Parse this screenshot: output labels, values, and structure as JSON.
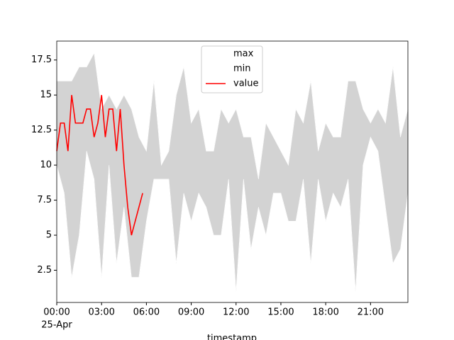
{
  "chart_data": {
    "type": "range-line",
    "x_label": "timestamp",
    "date_label": "25-Apr",
    "fill_color": "#d3d3d3",
    "xlim": [
      "00:00",
      "23:30"
    ],
    "xticks": [
      "00:00",
      "03:00",
      "06:00",
      "09:00",
      "12:00",
      "15:00",
      "18:00",
      "21:00"
    ],
    "ylim": [
      0.2,
      18.85
    ],
    "yticks": [
      2.5,
      5.0,
      7.5,
      10.0,
      12.5,
      15.0,
      17.5
    ],
    "legend": "upper center",
    "series": [
      {
        "name": "max",
        "color": "#ffffff",
        "x": [
          "00:00",
          "00:30",
          "01:00",
          "01:30",
          "02:00",
          "02:30",
          "03:00",
          "03:30",
          "04:00",
          "04:30",
          "05:00",
          "05:30",
          "06:00",
          "06:30",
          "07:00",
          "07:30",
          "08:00",
          "08:30",
          "09:00",
          "09:30",
          "10:00",
          "10:30",
          "11:00",
          "11:30",
          "12:00",
          "12:30",
          "13:00",
          "13:30",
          "14:00",
          "14:30",
          "15:00",
          "15:30",
          "16:00",
          "16:30",
          "17:00",
          "17:30",
          "18:00",
          "18:30",
          "19:00",
          "19:30",
          "20:00",
          "20:30",
          "21:00",
          "21:30",
          "22:00",
          "22:30",
          "23:00",
          "23:30"
        ],
        "values": [
          16,
          16,
          16,
          17,
          17,
          18,
          14,
          15,
          14,
          15,
          14,
          12,
          11,
          16,
          10,
          11,
          15,
          17,
          13,
          14,
          11,
          11,
          14,
          13,
          14,
          12,
          12,
          9,
          13,
          12,
          11,
          10,
          14,
          13,
          16,
          11,
          13,
          12,
          12,
          16,
          16,
          14,
          13,
          14,
          13,
          17,
          12,
          14
        ]
      },
      {
        "name": "min",
        "color": "#ffffff",
        "x": [
          "00:00",
          "00:30",
          "01:00",
          "01:30",
          "02:00",
          "02:30",
          "03:00",
          "03:30",
          "04:00",
          "04:30",
          "05:00",
          "05:30",
          "06:00",
          "06:30",
          "07:00",
          "07:30",
          "08:00",
          "08:30",
          "09:00",
          "09:30",
          "10:00",
          "10:30",
          "11:00",
          "11:30",
          "12:00",
          "12:30",
          "13:00",
          "13:30",
          "14:00",
          "14:30",
          "15:00",
          "15:30",
          "16:00",
          "16:30",
          "17:00",
          "17:30",
          "18:00",
          "18:30",
          "19:00",
          "19:30",
          "20:00",
          "20:30",
          "21:00",
          "21:30",
          "22:00",
          "22:30",
          "23:00",
          "23:30"
        ],
        "values": [
          10,
          8,
          2,
          5,
          11,
          9,
          2,
          10,
          3,
          7,
          2,
          2,
          6,
          9,
          9,
          9,
          3,
          8,
          6,
          8,
          7,
          5,
          5,
          9,
          1,
          9,
          4,
          7,
          5,
          8,
          8,
          6,
          6,
          9,
          3,
          9,
          6,
          8,
          7,
          9,
          1,
          10,
          12,
          11,
          7,
          3,
          4,
          8
        ]
      },
      {
        "name": "value",
        "color": "#ff0000",
        "x": [
          "00:00",
          "00:15",
          "00:30",
          "00:45",
          "01:00",
          "01:15",
          "01:30",
          "01:45",
          "02:00",
          "02:15",
          "02:30",
          "02:45",
          "03:00",
          "03:15",
          "03:30",
          "03:45",
          "04:00",
          "04:15",
          "04:30",
          "04:45",
          "05:00",
          "05:15",
          "05:30",
          "05:45"
        ],
        "values": [
          11,
          13,
          13,
          11,
          15,
          13,
          13,
          13,
          14,
          14,
          12,
          13,
          15,
          12,
          14,
          14,
          11,
          14,
          10,
          7,
          5,
          6,
          7,
          8
        ]
      }
    ]
  }
}
